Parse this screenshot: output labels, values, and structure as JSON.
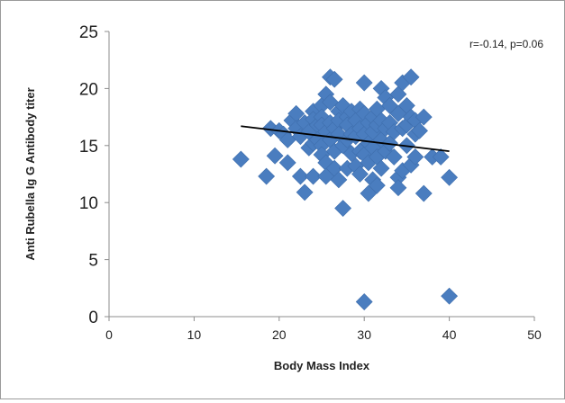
{
  "chart_data": {
    "type": "scatter",
    "title": "",
    "xlabel": "Body Mass Index",
    "ylabel": "Anti Rubella Ig G Antibody titer",
    "xlim": [
      0,
      50
    ],
    "ylim": [
      0,
      25
    ],
    "xticks": [
      "0",
      "10",
      "20",
      "30",
      "40",
      "50"
    ],
    "yticks": [
      "0",
      "5",
      "10",
      "15",
      "20",
      "25"
    ],
    "grid": false,
    "legend": "none",
    "annotation": "r=-0.14, p=0.06",
    "marker_color": "#4a7dbf",
    "trendline": {
      "color": "#000000",
      "x": [
        15.5,
        40
      ],
      "y": [
        16.7,
        14.5
      ]
    },
    "points": [
      [
        15.5,
        13.8
      ],
      [
        18.5,
        12.3
      ],
      [
        19,
        16.5
      ],
      [
        19.5,
        14.1
      ],
      [
        20,
        16.3
      ],
      [
        20.5,
        16
      ],
      [
        21,
        15.5
      ],
      [
        21,
        13.5
      ],
      [
        21.5,
        17.2
      ],
      [
        22,
        17.8
      ],
      [
        22,
        16.5
      ],
      [
        22.5,
        15.8
      ],
      [
        22.5,
        12.3
      ],
      [
        23,
        10.9
      ],
      [
        23,
        17
      ],
      [
        23.5,
        16.2
      ],
      [
        23.5,
        14.8
      ],
      [
        24,
        18
      ],
      [
        24,
        17.3
      ],
      [
        24,
        15.2
      ],
      [
        24,
        12.3
      ],
      [
        24.5,
        16.8
      ],
      [
        24.5,
        15.5
      ],
      [
        25,
        18.5
      ],
      [
        25,
        17.5
      ],
      [
        25,
        16.8
      ],
      [
        25,
        15
      ],
      [
        25,
        14.2
      ],
      [
        25.5,
        19.5
      ],
      [
        25.5,
        16.2
      ],
      [
        25.5,
        13.5
      ],
      [
        25.5,
        12.3
      ],
      [
        26,
        21
      ],
      [
        26,
        18.8
      ],
      [
        26,
        17
      ],
      [
        26,
        15.5
      ],
      [
        26.5,
        20.8
      ],
      [
        26.5,
        16.5
      ],
      [
        26.5,
        14.5
      ],
      [
        26.5,
        13
      ],
      [
        27,
        18
      ],
      [
        27,
        17.2
      ],
      [
        27,
        16
      ],
      [
        27,
        12
      ],
      [
        27.5,
        9.5
      ],
      [
        27.5,
        18.5
      ],
      [
        27.5,
        15
      ],
      [
        28,
        17.5
      ],
      [
        28,
        16.8
      ],
      [
        28,
        15.5
      ],
      [
        28,
        13
      ],
      [
        28.5,
        18
      ],
      [
        28.5,
        16
      ],
      [
        28.5,
        14.3
      ],
      [
        29,
        17.2
      ],
      [
        29,
        15.8
      ],
      [
        29,
        13.2
      ],
      [
        29.5,
        18.2
      ],
      [
        29.5,
        16.5
      ],
      [
        29.5,
        14.5
      ],
      [
        29.5,
        12.5
      ],
      [
        30,
        20.5
      ],
      [
        30,
        17.8
      ],
      [
        30,
        16
      ],
      [
        30,
        14.2
      ],
      [
        30,
        1.3
      ],
      [
        30.5,
        17
      ],
      [
        30.5,
        15.2
      ],
      [
        30.5,
        13.5
      ],
      [
        30.5,
        10.8
      ],
      [
        31,
        17.5
      ],
      [
        31,
        16.2
      ],
      [
        31,
        14.8
      ],
      [
        31,
        12
      ],
      [
        31.5,
        18.2
      ],
      [
        31.5,
        16.8
      ],
      [
        31.5,
        14
      ],
      [
        31.5,
        11.5
      ],
      [
        32,
        20
      ],
      [
        32,
        17.2
      ],
      [
        32,
        15.5
      ],
      [
        32,
        13
      ],
      [
        32.5,
        19.2
      ],
      [
        32.5,
        16.5
      ],
      [
        32.5,
        14.5
      ],
      [
        33,
        18.5
      ],
      [
        33,
        17
      ],
      [
        33,
        15.2
      ],
      [
        33.5,
        16.2
      ],
      [
        33.5,
        14
      ],
      [
        34,
        19.5
      ],
      [
        34,
        17.8
      ],
      [
        34,
        12.2
      ],
      [
        34,
        11.3
      ],
      [
        34.5,
        20.5
      ],
      [
        34.5,
        16.5
      ],
      [
        34.5,
        12.8
      ],
      [
        35,
        18.5
      ],
      [
        35,
        16.8
      ],
      [
        35,
        15
      ],
      [
        35.5,
        21
      ],
      [
        35.5,
        17.5
      ],
      [
        35.5,
        13.3
      ],
      [
        36,
        17.2
      ],
      [
        36,
        14
      ],
      [
        36,
        16
      ],
      [
        36.5,
        16.3
      ],
      [
        37,
        17.5
      ],
      [
        37,
        10.8
      ],
      [
        38,
        14
      ],
      [
        39,
        14
      ],
      [
        40,
        12.2
      ],
      [
        40,
        1.8
      ]
    ]
  }
}
